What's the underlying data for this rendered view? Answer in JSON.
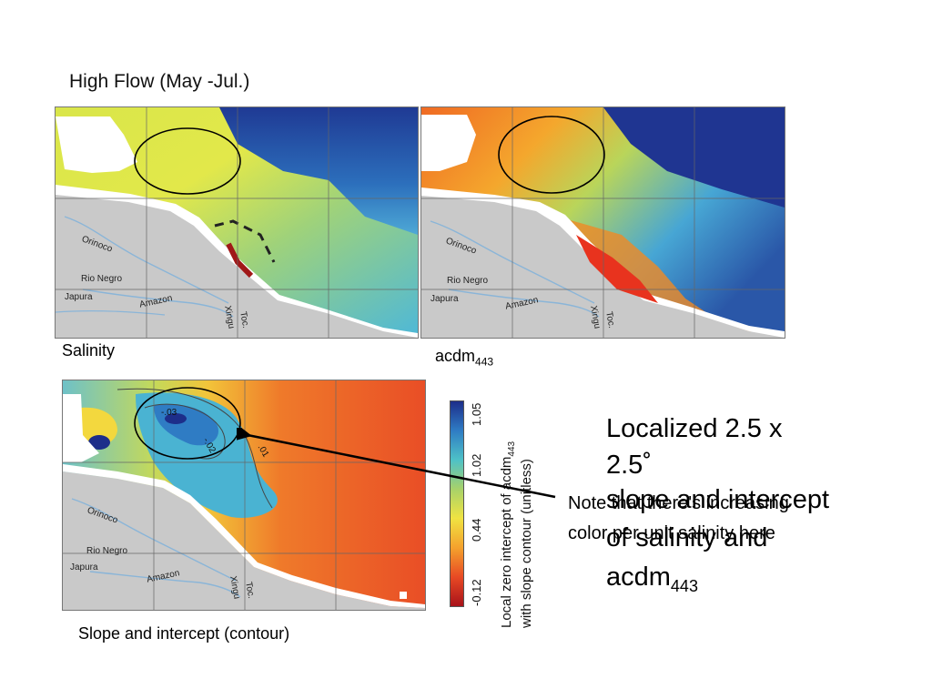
{
  "header": "High Flow (May -Jul.)",
  "labels": {
    "salinity": "Salinity",
    "acdm_base": "acdm",
    "acdm_sub": "443",
    "slope": "Slope and intercept (contour)"
  },
  "map_labels": {
    "orinoco": "Orinoco",
    "rio_negro": "Rio Negro",
    "japura": "Japura",
    "amazon": "Amazon",
    "xingu": "Xingu",
    "toc": "Toc."
  },
  "contours": {
    "c03": "-.03",
    "c02": "-.02",
    "c01": ".01"
  },
  "colorbar": {
    "ticks": [
      "1.05",
      "1.02",
      "0.44",
      "-0.12"
    ],
    "title_line1": "Local zero intercept of acdm",
    "title_line1_sub": "443",
    "title_line2": "with slope contour (unitless)",
    "colors": [
      "#1d2e8a",
      "#2f7cc4",
      "#4ec1c7",
      "#a8d26a",
      "#f0e342",
      "#f4a22d",
      "#e84a24",
      "#a8121a"
    ]
  },
  "text": {
    "localized_line1": "Localized 2.5 x",
    "localized_line2": "2.5˚",
    "slope_line": "slope and intercept",
    "salinity_and": "of salinity and",
    "acdm_base": "acdm",
    "acdm_sub": "443",
    "note_line1": "Note that there's increasing",
    "note_line2": "color per unit salinity here"
  }
}
